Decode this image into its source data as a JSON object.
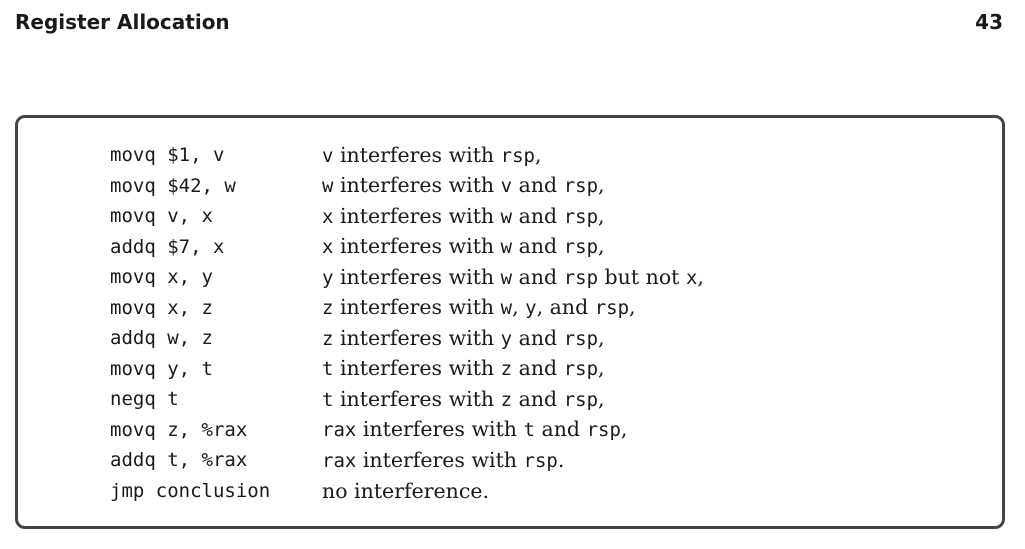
{
  "header": {
    "title": "Register Allocation",
    "page_number": "43"
  },
  "rows": [
    {
      "instruction": "movq $1, v",
      "note": [
        {
          "text": "v",
          "code": true
        },
        {
          "text": " interferes with ",
          "code": false
        },
        {
          "text": "rsp",
          "code": true
        },
        {
          "text": ",",
          "code": false
        }
      ]
    },
    {
      "instruction": "movq $42, w",
      "note": [
        {
          "text": "w",
          "code": true
        },
        {
          "text": " interferes with ",
          "code": false
        },
        {
          "text": "v",
          "code": true
        },
        {
          "text": " and ",
          "code": false
        },
        {
          "text": "rsp",
          "code": true
        },
        {
          "text": ",",
          "code": false
        }
      ]
    },
    {
      "instruction": "movq v, x",
      "note": [
        {
          "text": "x",
          "code": true
        },
        {
          "text": " interferes with ",
          "code": false
        },
        {
          "text": "w",
          "code": true
        },
        {
          "text": " and ",
          "code": false
        },
        {
          "text": "rsp",
          "code": true
        },
        {
          "text": ",",
          "code": false
        }
      ]
    },
    {
      "instruction": "addq $7, x",
      "note": [
        {
          "text": "x",
          "code": true
        },
        {
          "text": " interferes with ",
          "code": false
        },
        {
          "text": "w",
          "code": true
        },
        {
          "text": " and ",
          "code": false
        },
        {
          "text": "rsp",
          "code": true
        },
        {
          "text": ",",
          "code": false
        }
      ]
    },
    {
      "instruction": "movq x, y",
      "note": [
        {
          "text": "y",
          "code": true
        },
        {
          "text": " interferes with ",
          "code": false
        },
        {
          "text": "w",
          "code": true
        },
        {
          "text": " and ",
          "code": false
        },
        {
          "text": "rsp",
          "code": true
        },
        {
          "text": " but not ",
          "code": false
        },
        {
          "text": "x",
          "code": true
        },
        {
          "text": ",",
          "code": false
        }
      ]
    },
    {
      "instruction": "movq x, z",
      "note": [
        {
          "text": "z",
          "code": true
        },
        {
          "text": " interferes with ",
          "code": false
        },
        {
          "text": "w",
          "code": true
        },
        {
          "text": ", ",
          "code": false
        },
        {
          "text": "y",
          "code": true
        },
        {
          "text": ", and ",
          "code": false
        },
        {
          "text": "rsp",
          "code": true
        },
        {
          "text": ",",
          "code": false
        }
      ]
    },
    {
      "instruction": "addq w, z",
      "note": [
        {
          "text": "z",
          "code": true
        },
        {
          "text": " interferes with ",
          "code": false
        },
        {
          "text": "y",
          "code": true
        },
        {
          "text": " and ",
          "code": false
        },
        {
          "text": "rsp",
          "code": true
        },
        {
          "text": ",",
          "code": false
        }
      ]
    },
    {
      "instruction": "movq y, t",
      "note": [
        {
          "text": "t",
          "code": true
        },
        {
          "text": " interferes with ",
          "code": false
        },
        {
          "text": "z",
          "code": true
        },
        {
          "text": " and ",
          "code": false
        },
        {
          "text": "rsp",
          "code": true
        },
        {
          "text": ",",
          "code": false
        }
      ]
    },
    {
      "instruction": "negq t",
      "note": [
        {
          "text": "t",
          "code": true
        },
        {
          "text": " interferes with ",
          "code": false
        },
        {
          "text": "z",
          "code": true
        },
        {
          "text": " and ",
          "code": false
        },
        {
          "text": "rsp",
          "code": true
        },
        {
          "text": ",",
          "code": false
        }
      ]
    },
    {
      "instruction": "movq z, %rax",
      "note": [
        {
          "text": "rax",
          "code": true
        },
        {
          "text": " interferes with ",
          "code": false
        },
        {
          "text": "t",
          "code": true
        },
        {
          "text": " and ",
          "code": false
        },
        {
          "text": "rsp",
          "code": true
        },
        {
          "text": ",",
          "code": false
        }
      ]
    },
    {
      "instruction": "addq t, %rax",
      "note": [
        {
          "text": "rax",
          "code": true
        },
        {
          "text": " interferes with ",
          "code": false
        },
        {
          "text": "rsp",
          "code": true
        },
        {
          "text": ".",
          "code": false
        }
      ]
    },
    {
      "instruction": "jmp conclusion",
      "note": [
        {
          "text": "no interference.",
          "code": false
        }
      ]
    }
  ]
}
